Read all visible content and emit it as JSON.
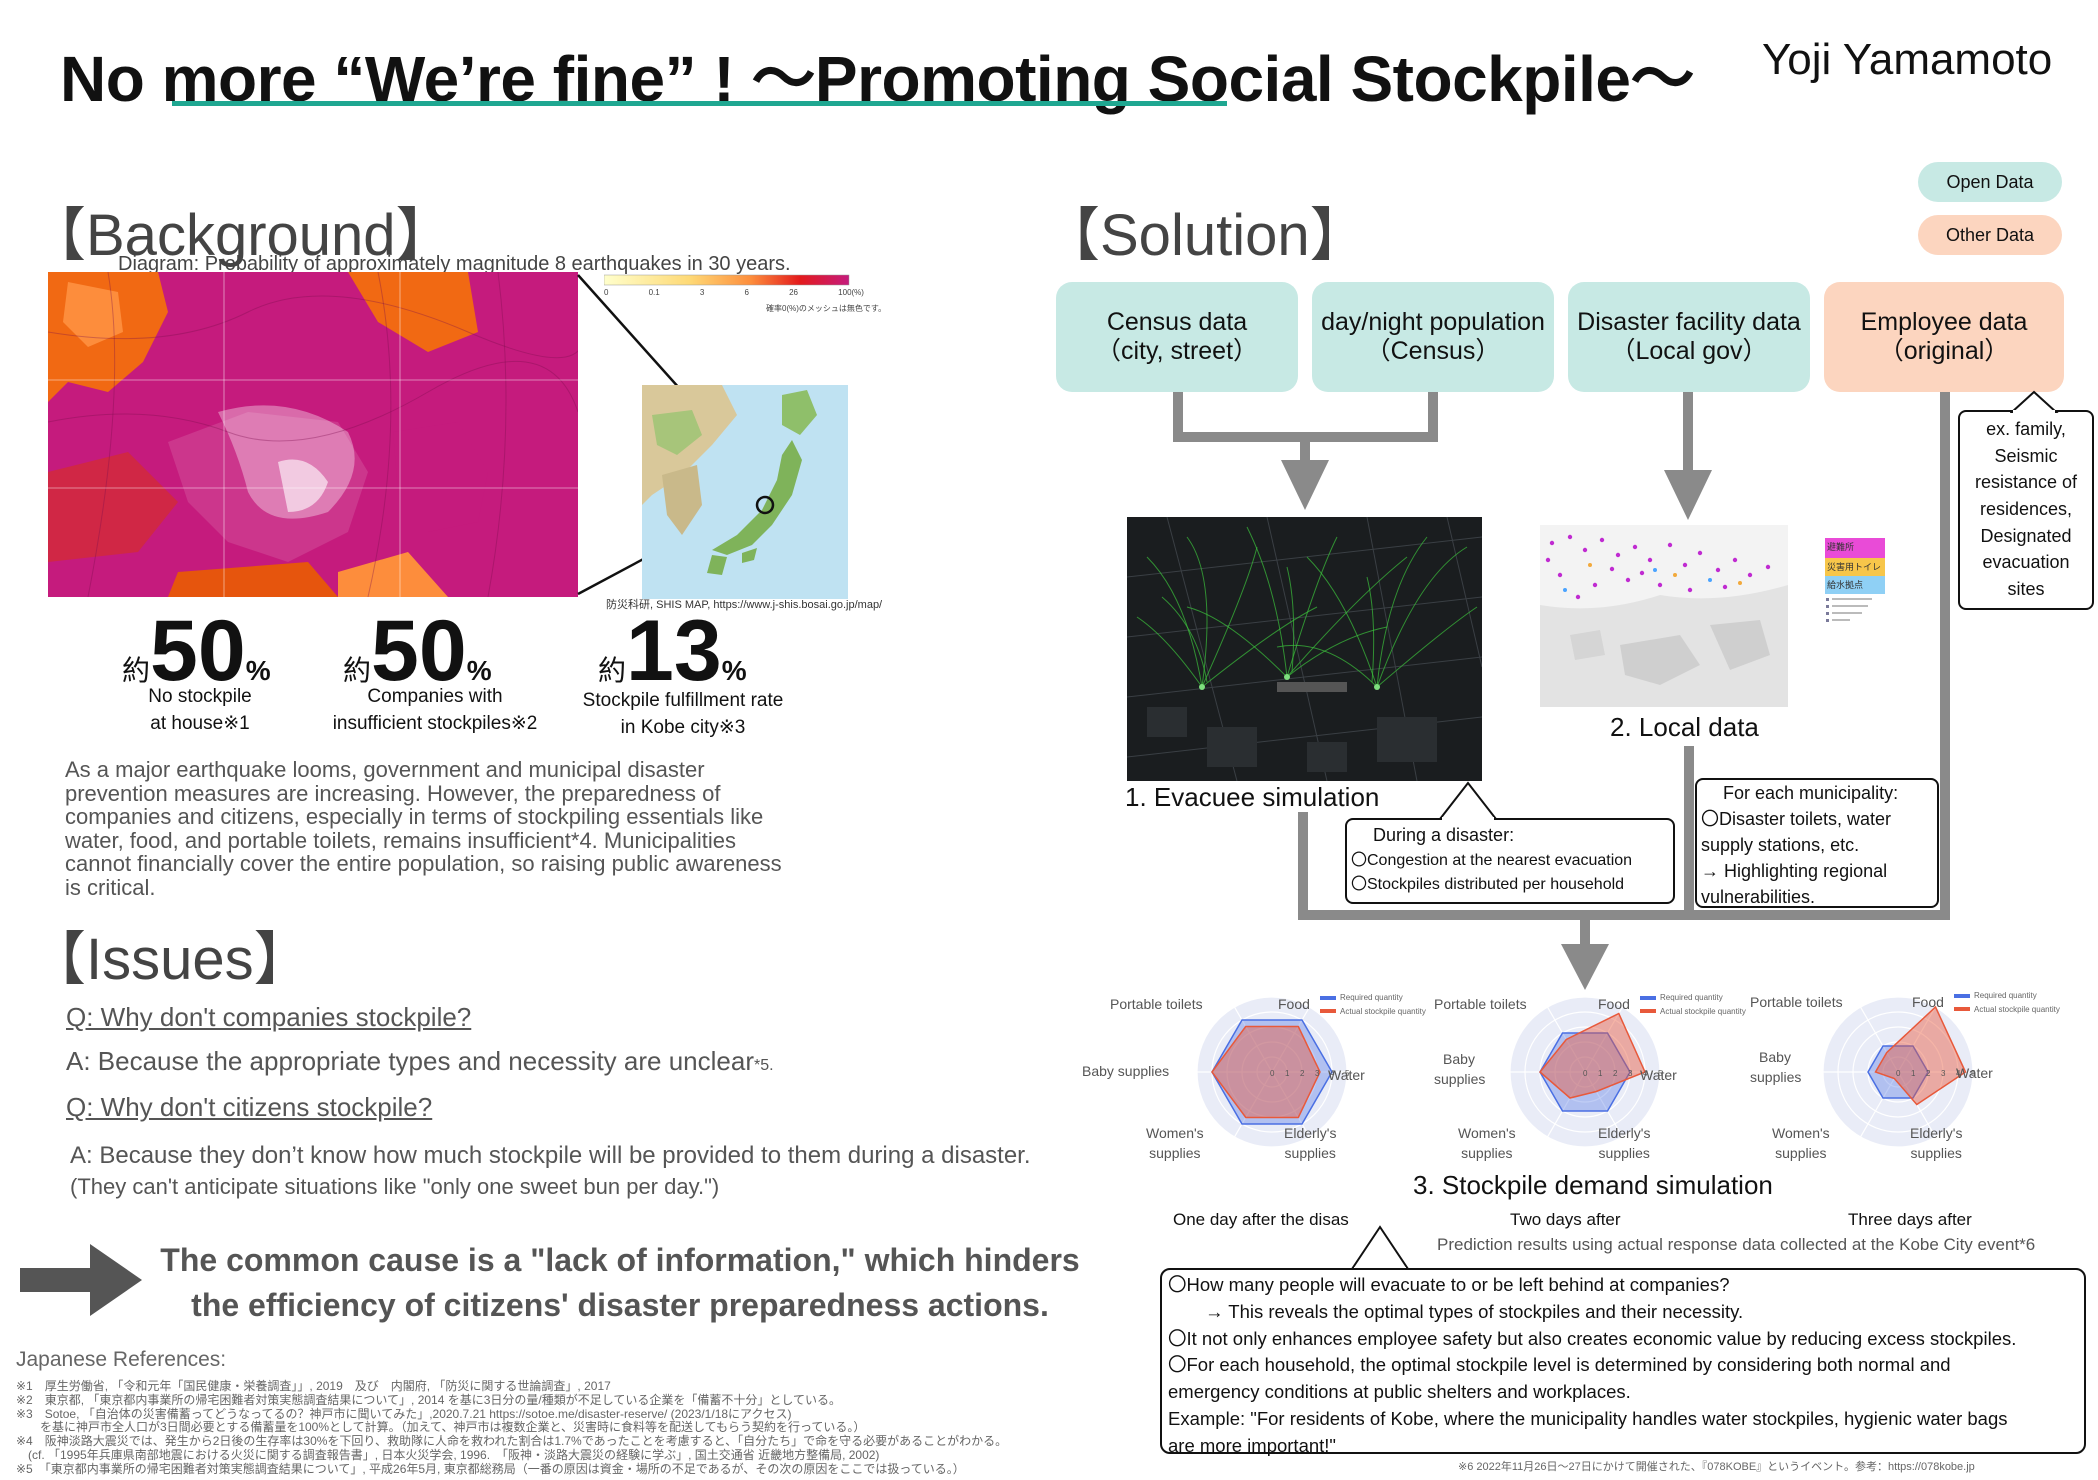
{
  "header": {
    "title": "No more “We’re fine” ! ～Promoting Social Stockpile～",
    "author": "Yoji Yamamoto"
  },
  "background": {
    "heading": "【Background】",
    "map_caption": "Diagram: Probability of approximately magnitude 8 earthquakes in 30 years.",
    "map_legend_ticks": [
      "0",
      "0.1",
      "3",
      "6",
      "26",
      "100(%)"
    ],
    "map_legend_note": "確率0(%)のメッシュは無色です。",
    "map_source": "防災科研, SHIS MAP, https://www.j-shis.bosai.go.jp/map/",
    "stats": [
      {
        "prefix": "約",
        "value": "50",
        "unit": "%",
        "label_line1": "No stockpile",
        "label_line2": "at house※1"
      },
      {
        "prefix": "約",
        "value": "50",
        "unit": "%",
        "label_line1": "Companies with",
        "label_line2": "insufficient stockpiles※2"
      },
      {
        "prefix": "約",
        "value": "13",
        "unit": "%",
        "label_line1": "Stockpile fulfillment rate",
        "label_line2": "in Kobe city※3"
      }
    ],
    "text_lines": [
      "As a major earthquake looms, government and municipal disaster",
      "prevention measures are increasing. However, the preparedness of",
      "companies and citizens, especially in terms of stockpiling essentials like",
      "water, food, and portable toilets, remains insufficient*4. Municipalities",
      "cannot financially cover the entire population, so raising public awareness",
      "is critical."
    ]
  },
  "issues": {
    "heading": "【Issues】",
    "q1": "Q: Why don't companies stockpile?",
    "a1": "A: Because the appropriate types and necessity are unclear",
    "a1_note": "*5.",
    "q2": "Q: Why don't citizens stockpile?",
    "a2_line1": "A: Because they don’t know how much stockpile will be provided to them during a disaster.",
    "a2_line2": "(They can't anticipate situations like \"only one sweet bun per day.\")",
    "conclusion_line1": "The common cause is a \"lack of information,\" which hinders",
    "conclusion_line2": "the efficiency of citizens' disaster preparedness actions."
  },
  "references": {
    "heading": "Japanese References:",
    "items": [
      "※1　厚生労働省, 「令和元年「国民健康・栄養調査」」, 2019　及び　内閣府, 「防災に関する世論調査」, 2017",
      "※2　東京都, 「東京都内事業所の帰宅困難者対策実態調査結果について」, 2014 を基に3日分の量/種類が不足している企業を「備蓄不十分」としている。",
      "※3　Sotoe, 「自治体の災害備蓄ってどうなってるの？神戸市に聞いてみた」,2020.7.21 https://sotoe.me/disaster-reserve/ (2023/1/18にアクセス)",
      "　　を基に神戸市全人口が3日間必要とする備蓄量を100%として計算。（加えて、神戸市は複数企業と、災害時に食料等を配送してもらう契約を行っている。）",
      "※4　阪神淡路大震災では、発生から2日後の生存率は30%を下回り、救助隊に人命を救われた割合は1.7%であったことを考慮すると、「自分たち」で命を守る必要があることがわかる。",
      "　(cf. 「1995年兵庫県南部地震における火災に関する調査報告書」, 日本火災学会, 1996.　「阪神・淡路大震災の経験に学ぶ」, 国土交通省 近畿地方整備局, 2002)",
      "※5　「東京都内事業所の帰宅困難者対策実態調査結果について」, 平成26年5月, 東京都総務局（一番の原因は資金・場所の不足であるが、その次の原因をここでは扱っている。）"
    ],
    "note6": "※6 2022年11月26日～27日にかけて開催された、『078KOBE』というイベント。参考：https://078kobe.jp"
  },
  "solution": {
    "heading": "【Solution】",
    "legend": {
      "open": "Open Data",
      "other": "Other Data"
    },
    "sources": [
      {
        "line1": "Census data",
        "line2": "（city, street）",
        "kind": "open"
      },
      {
        "line1": "day/night population",
        "line2": "（Census）",
        "kind": "open"
      },
      {
        "line1": "Disaster facility data",
        "line2": "（Local gov）",
        "kind": "open"
      },
      {
        "line1": "Employee data",
        "line2": "（original）",
        "kind": "other"
      }
    ],
    "employee_note": [
      "ex. family,",
      "Seismic",
      "resistance of",
      "residences,",
      "Designated",
      "evacuation",
      "sites"
    ],
    "sim1_label": "1. Evacuee simulation",
    "sim2_label": "2. Local data",
    "map_legend": [
      "避難所",
      "災害用トイレ",
      "給水拠点"
    ],
    "callout_disaster": {
      "title": "During a disaster:",
      "line1": "〇Congestion at the nearest evacuation",
      "line2": "〇Stockpiles distributed per household"
    },
    "callout_municipality": {
      "title": "For each municipality:",
      "line1": "〇Disaster toilets, water",
      "line2": "supply stations, etc.",
      "line3": "→ Highlighting regional",
      "line4": "vulnerabilities."
    },
    "sim3_label": "3. Stockpile demand simulation",
    "radar_axes": [
      "Food",
      "Water",
      "Elderly's\nsupplies",
      "Women's\nsupplies",
      "Baby supplies",
      "Portable toilets"
    ],
    "radar_legend": [
      "Required quantity",
      "Actual stockpile quantity"
    ],
    "radar_ticks": [
      "0",
      "1",
      "2",
      "3",
      "4",
      "5"
    ],
    "radars": [
      {
        "caption": "One day after the disas",
        "required": [
          4,
          4,
          4,
          4,
          4,
          4
        ],
        "actual": [
          3.5,
          3.2,
          3.5,
          3.5,
          4,
          3.5
        ]
      },
      {
        "caption": "Two days after",
        "required": [
          3,
          3,
          3,
          3,
          3,
          3
        ],
        "actual": [
          4.5,
          4,
          1.5,
          2,
          3,
          2.5
        ]
      },
      {
        "caption": "Three days after",
        "required": [
          2,
          2,
          2,
          2,
          2,
          2
        ],
        "actual": [
          5,
          4.5,
          2.5,
          0.5,
          1.5,
          1.5
        ]
      }
    ],
    "prediction_note": "Prediction results using actual response data collected at the Kobe City event*6",
    "bottom_box": [
      "〇How many people will evacuate to or be left behind at companies?",
      "　　→ This reveals the optimal types of stockpiles and their necessity.",
      "〇It not only enhances employee safety but also creates economic value by reducing excess stockpiles.",
      "〇For each household, the optimal stockpile level is determined by considering both normal and",
      "emergency conditions at public shelters and workplaces.",
      "Example: \"For residents of Kobe, where the municipality handles water stockpiles, hygienic water bags",
      "are more important!\""
    ]
  },
  "colors": {
    "teal": "#c7e9e4",
    "peach": "#fcd5bf",
    "accent": "#1fa791",
    "required": "#4a6fe3",
    "actual": "#e8593b"
  }
}
